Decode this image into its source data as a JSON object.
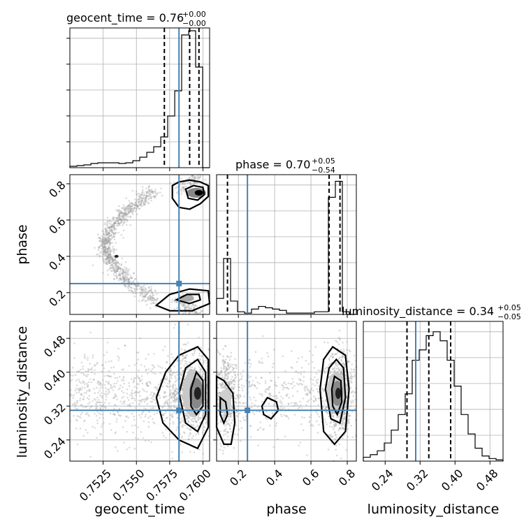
{
  "chart_data": {
    "type": "corner",
    "parameters": [
      "geocent_time",
      "phase",
      "luminosity_distance"
    ],
    "truths": {
      "geocent_time": 0.7582,
      "phase": 0.25,
      "luminosity_distance": 0.31
    },
    "panels": {
      "geocent_time_hist": {
        "title_main": "geocent_time = 0.76",
        "title_plus": "+0.00",
        "title_minus": "−0.00",
        "xlim": [
          0.75,
          0.7605
        ],
        "quantiles": [
          0.7571,
          0.759,
          0.7597
        ],
        "bins": [
          0.75,
          0.75053,
          0.75105,
          0.75158,
          0.7521,
          0.75263,
          0.75315,
          0.75368,
          0.7542,
          0.75473,
          0.75525,
          0.75578,
          0.7563,
          0.75683,
          0.75735,
          0.75788,
          0.7584,
          0.75893,
          0.75945,
          0.75998,
          0.7605
        ],
        "counts": [
          0.01,
          0.015,
          0.02,
          0.03,
          0.035,
          0.035,
          0.035,
          0.03,
          0.035,
          0.05,
          0.075,
          0.11,
          0.15,
          0.22,
          0.37,
          0.55,
          0.95,
          0.98,
          0.72,
          0.0
        ],
        "ymax": 1.0
      },
      "phase_hist": {
        "title_main": "phase = 0.70",
        "title_plus": "+0.05",
        "title_minus": "−0.54",
        "xlim": [
          0.08,
          0.85
        ],
        "quantiles": [
          0.14,
          0.7,
          0.76
        ],
        "bins": [
          0.08,
          0.1185,
          0.157,
          0.1955,
          0.234,
          0.2725,
          0.311,
          0.3495,
          0.388,
          0.4265,
          0.465,
          0.5035,
          0.542,
          0.5805,
          0.619,
          0.6575,
          0.696,
          0.7345,
          0.773,
          0.8115,
          0.85
        ],
        "counts": [
          0.12,
          0.42,
          0.1,
          0.02,
          0.01,
          0.04,
          0.06,
          0.05,
          0.04,
          0.03,
          0.01,
          0.01,
          0.01,
          0.01,
          0.02,
          0.02,
          0.88,
          1.0,
          0.02,
          0.0
        ],
        "ymax": 1.05
      },
      "lumdist_hist": {
        "title_main": "luminosity_distance = 0.34",
        "title_plus": "+0.05",
        "title_minus": "−0.05",
        "xlim": [
          0.19,
          0.51
        ],
        "quantiles": [
          0.29,
          0.34,
          0.39
        ],
        "bins": [
          0.19,
          0.206,
          0.222,
          0.238,
          0.254,
          0.27,
          0.286,
          0.302,
          0.318,
          0.334,
          0.35,
          0.366,
          0.382,
          0.398,
          0.414,
          0.43,
          0.446,
          0.462,
          0.478,
          0.494,
          0.51
        ],
        "counts": [
          0.03,
          0.05,
          0.08,
          0.14,
          0.24,
          0.36,
          0.52,
          0.78,
          0.86,
          0.97,
          1.0,
          0.93,
          0.78,
          0.58,
          0.36,
          0.21,
          0.1,
          0.04,
          0.02,
          0.01
        ],
        "ymax": 1.08
      }
    },
    "axes": {
      "geocent_time": {
        "label": "geocent_time",
        "ticks": [
          "0.7525",
          "0.7550",
          "0.7575",
          "0.7600"
        ],
        "tick_values": [
          0.7525,
          0.755,
          0.7575,
          0.76
        ]
      },
      "phase": {
        "label": "phase",
        "ticks": [
          "0.2",
          "0.4",
          "0.6",
          "0.8"
        ],
        "tick_values": [
          0.2,
          0.4,
          0.6,
          0.8
        ]
      },
      "luminosity_distance": {
        "label": "luminosity_distance",
        "ticks": [
          "0.24",
          "0.32",
          "0.40",
          "0.48"
        ],
        "tick_values": [
          0.24,
          0.32,
          0.4,
          0.48
        ]
      }
    },
    "ylims": {
      "phase": [
        0.08,
        0.85
      ],
      "luminosity_distance": [
        0.19,
        0.52
      ]
    },
    "grid": true,
    "colors": {
      "truth": "#4682b4",
      "lines": "#000000",
      "grid": "#b0b0b0",
      "samples": "#9a9a9a"
    }
  }
}
